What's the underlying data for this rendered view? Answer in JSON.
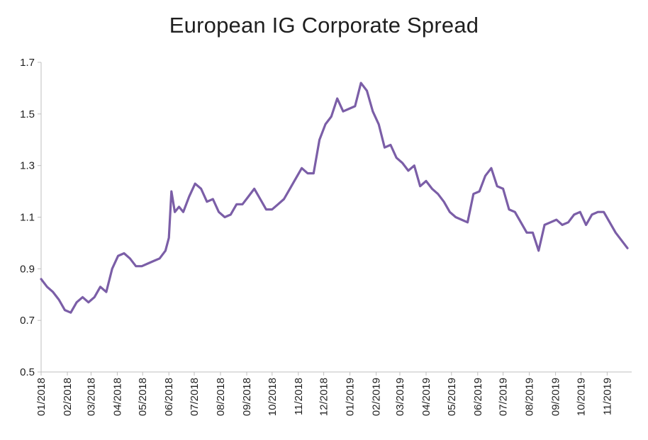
{
  "chart_data": {
    "type": "line",
    "title": "European IG Corporate Spread",
    "xlabel": "",
    "ylabel": "",
    "ylim": [
      0.5,
      1.7
    ],
    "yticks": [
      "0.5",
      "0.7",
      "0.9",
      "1.1",
      "1.3",
      "1.5",
      "1.7"
    ],
    "xticks": [
      "01/2018",
      "02/2018",
      "03/2018",
      "04/2018",
      "05/2018",
      "06/2018",
      "07/2018",
      "08/2018",
      "09/2018",
      "10/2018",
      "11/2018",
      "12/2018",
      "01/2019",
      "02/2019",
      "03/2019",
      "04/2019",
      "05/2019",
      "06/2019",
      "07/2019",
      "08/2019",
      "09/2019",
      "10/2019",
      "11/2019"
    ],
    "grid": false,
    "legend": "none",
    "series": [
      {
        "color": "#7b5ea7",
        "x": [
          "2018-01-01",
          "2018-01-08",
          "2018-01-15",
          "2018-01-22",
          "2018-01-29",
          "2018-02-05",
          "2018-02-12",
          "2018-02-19",
          "2018-02-26",
          "2018-03-05",
          "2018-03-12",
          "2018-03-19",
          "2018-03-26",
          "2018-04-02",
          "2018-04-09",
          "2018-04-16",
          "2018-04-23",
          "2018-04-30",
          "2018-05-07",
          "2018-05-14",
          "2018-05-21",
          "2018-05-28",
          "2018-06-01",
          "2018-06-04",
          "2018-06-08",
          "2018-06-13",
          "2018-06-18",
          "2018-06-25",
          "2018-07-02",
          "2018-07-09",
          "2018-07-16",
          "2018-07-23",
          "2018-07-30",
          "2018-08-06",
          "2018-08-13",
          "2018-08-20",
          "2018-08-27",
          "2018-09-03",
          "2018-09-10",
          "2018-09-17",
          "2018-09-24",
          "2018-10-01",
          "2018-10-08",
          "2018-10-15",
          "2018-10-22",
          "2018-10-29",
          "2018-11-05",
          "2018-11-12",
          "2018-11-19",
          "2018-11-26",
          "2018-12-03",
          "2018-12-10",
          "2018-12-17",
          "2018-12-24",
          "2018-12-31",
          "2019-01-07",
          "2019-01-14",
          "2019-01-21",
          "2019-01-28",
          "2019-02-04",
          "2019-02-11",
          "2019-02-18",
          "2019-02-25",
          "2019-03-04",
          "2019-03-11",
          "2019-03-18",
          "2019-03-25",
          "2019-04-01",
          "2019-04-08",
          "2019-04-15",
          "2019-04-22",
          "2019-04-29",
          "2019-05-06",
          "2019-05-13",
          "2019-05-20",
          "2019-05-27",
          "2019-06-03",
          "2019-06-10",
          "2019-06-17",
          "2019-06-24",
          "2019-07-01",
          "2019-07-08",
          "2019-07-15",
          "2019-07-22",
          "2019-07-29",
          "2019-08-05",
          "2019-08-12",
          "2019-08-19",
          "2019-08-26",
          "2019-09-02",
          "2019-09-09",
          "2019-09-16",
          "2019-09-23",
          "2019-09-30",
          "2019-10-07",
          "2019-10-14",
          "2019-10-21",
          "2019-10-28",
          "2019-11-04",
          "2019-11-11",
          "2019-11-18",
          "2019-11-25"
        ],
        "values": [
          0.86,
          0.83,
          0.81,
          0.78,
          0.74,
          0.73,
          0.77,
          0.79,
          0.77,
          0.79,
          0.83,
          0.81,
          0.9,
          0.95,
          0.96,
          0.94,
          0.91,
          0.91,
          0.92,
          0.93,
          0.94,
          0.97,
          1.02,
          1.2,
          1.12,
          1.14,
          1.12,
          1.18,
          1.23,
          1.21,
          1.16,
          1.17,
          1.12,
          1.1,
          1.11,
          1.15,
          1.15,
          1.18,
          1.21,
          1.17,
          1.13,
          1.13,
          1.15,
          1.17,
          1.21,
          1.25,
          1.29,
          1.27,
          1.27,
          1.4,
          1.46,
          1.49,
          1.56,
          1.51,
          1.52,
          1.53,
          1.62,
          1.59,
          1.51,
          1.46,
          1.37,
          1.38,
          1.33,
          1.31,
          1.28,
          1.3,
          1.22,
          1.24,
          1.21,
          1.19,
          1.16,
          1.12,
          1.1,
          1.09,
          1.08,
          1.19,
          1.2,
          1.26,
          1.29,
          1.22,
          1.21,
          1.13,
          1.12,
          1.08,
          1.04,
          1.04,
          0.97,
          1.07,
          1.08,
          1.09,
          1.07,
          1.08,
          1.11,
          1.12,
          1.07,
          1.11,
          1.12,
          1.12,
          1.08,
          1.04,
          1.01,
          0.98
        ]
      }
    ]
  }
}
